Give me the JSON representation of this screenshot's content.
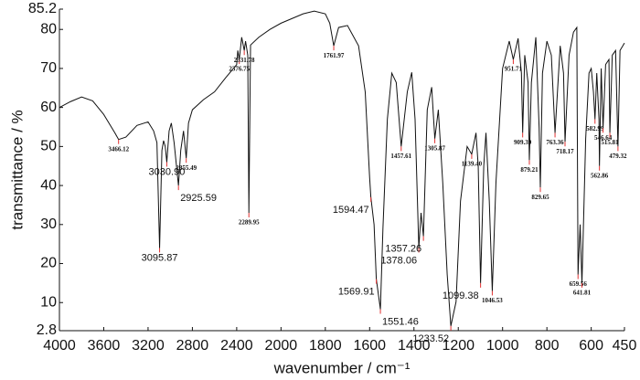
{
  "chart_data": {
    "type": "line",
    "xlabel": "wavenumber / cm⁻¹",
    "ylabel": "transmittance / %",
    "xlim": [
      4000,
      450
    ],
    "xticks": [
      4000,
      3600,
      3200,
      2800,
      2400,
      2000,
      1800,
      1600,
      1400,
      1200,
      1000,
      800,
      600,
      450
    ],
    "x_scale_break": 2000,
    "x_scale_ratio": 2,
    "ylim": [
      2.8,
      85.2
    ],
    "yticks": [
      2.8,
      10,
      20,
      30,
      40,
      50,
      60,
      70,
      80,
      85.2
    ],
    "color": "#111111",
    "marker_color": "#e03030",
    "x": [
      4000,
      3900,
      3800,
      3700,
      3600,
      3500,
      3466.12,
      3400,
      3300,
      3200,
      3150,
      3120,
      3095.87,
      3075,
      3060,
      3045,
      3030.9,
      3010,
      2990,
      2965,
      2925.59,
      2905,
      2880,
      2855.49,
      2835,
      2800,
      2700,
      2600,
      2500,
      2400,
      2390,
      2376.75,
      2355,
      2331.78,
      2320,
      2300,
      2289.95,
      2275,
      2200,
      2100,
      2000,
      1900,
      1850,
      1800,
      1780,
      1761.97,
      1740,
      1700,
      1650,
      1620,
      1600,
      1594.47,
      1580,
      1569.91,
      1551.46,
      1540,
      1520,
      1500,
      1480,
      1457.61,
      1430,
      1410,
      1395,
      1378.06,
      1368,
      1357.26,
      1340,
      1320,
      1305.87,
      1290,
      1270,
      1250,
      1233.52,
      1210,
      1190,
      1160,
      1139.4,
      1120,
      1110,
      1099.38,
      1085,
      1075,
      1060,
      1046.53,
      1030,
      1000,
      970,
      951.71,
      930,
      915,
      909.39,
      900,
      885,
      879.21,
      870,
      850,
      835,
      829.65,
      820,
      800,
      780,
      763.36,
      740,
      725,
      718.17,
      700,
      680,
      665,
      659.56,
      650,
      641.81,
      625,
      610,
      600,
      590,
      582.99,
      575,
      565,
      562.86,
      555,
      546.64,
      535,
      520,
      515.81,
      505,
      490,
      479.32,
      470,
      450
    ],
    "values": [
      60,
      61.5,
      62.7,
      61.7,
      58.2,
      53.5,
      51.8,
      52.4,
      55.4,
      56.3,
      54,
      51,
      24,
      49,
      51.5,
      50,
      46,
      54,
      56,
      51,
      40,
      49,
      54,
      47,
      56,
      59.4,
      62,
      64,
      67.6,
      71,
      74.6,
      72.3,
      78,
      74.6,
      77,
      73.4,
      33,
      76,
      78,
      80,
      81.6,
      84,
      84.7,
      84,
      81.6,
      75.8,
      80.5,
      81,
      75.8,
      64,
      42,
      37,
      30,
      16,
      8.3,
      29,
      57,
      68.8,
      66.4,
      50,
      64,
      69,
      57,
      24,
      33,
      27,
      59.4,
      65.2,
      52,
      59.4,
      40.7,
      17.2,
      4,
      10.2,
      36,
      50,
      48,
      53.5,
      45,
      15,
      45,
      53.5,
      36,
      13,
      40.7,
      70,
      77,
      72.3,
      77.7,
      68.8,
      53.5,
      73.4,
      66.4,
      46.5,
      66.4,
      78,
      54.7,
      39.5,
      68.8,
      77,
      73.4,
      53.5,
      75.8,
      68.8,
      51.2,
      73.4,
      79.3,
      80.5,
      17.2,
      30,
      15,
      52,
      68.8,
      70,
      64,
      57,
      68.8,
      57,
      45,
      70,
      54.7,
      71,
      72.3,
      53.5,
      73.4,
      74.6,
      50,
      74.6,
      76.5
    ],
    "annotations": [
      {
        "label": "3466.12",
        "x": 3466.12,
        "y": 51.8,
        "style": "small",
        "anchor": "below"
      },
      {
        "label": "3095.87",
        "x": 3095.87,
        "y": 24,
        "style": "large",
        "anchor": "below"
      },
      {
        "label": "3030.90",
        "x": 3030.9,
        "y": 46,
        "style": "large",
        "anchor": "below"
      },
      {
        "label": "2925.59",
        "x": 2925.59,
        "y": 40,
        "style": "large",
        "anchor": "right"
      },
      {
        "label": "2855.49",
        "x": 2855.49,
        "y": 47,
        "style": "small",
        "anchor": "below"
      },
      {
        "label": "2376.75",
        "x": 2376.75,
        "y": 72.3,
        "style": "small",
        "anchor": "below"
      },
      {
        "label": "2331.78",
        "x": 2331.78,
        "y": 74.6,
        "style": "small",
        "anchor": "below"
      },
      {
        "label": "2289.95",
        "x": 2289.95,
        "y": 33,
        "style": "small",
        "anchor": "below"
      },
      {
        "label": "1761.97",
        "x": 1761.97,
        "y": 75.8,
        "style": "small",
        "anchor": "below"
      },
      {
        "label": "1594.47",
        "x": 1594.47,
        "y": 37,
        "style": "large",
        "anchor": "left"
      },
      {
        "label": "1569.91",
        "x": 1569.91,
        "y": 16,
        "style": "large",
        "anchor": "left"
      },
      {
        "label": "1551.46",
        "x": 1551.46,
        "y": 8.3,
        "style": "large",
        "anchor": "right"
      },
      {
        "label": "1457.61",
        "x": 1457.61,
        "y": 50,
        "style": "small",
        "anchor": "below"
      },
      {
        "label": "1378.06",
        "x": 1378.06,
        "y": 24,
        "style": "large",
        "anchor": "left"
      },
      {
        "label": "1357.26",
        "x": 1357.26,
        "y": 27,
        "style": "large",
        "anchor": "left"
      },
      {
        "label": "1305.87",
        "x": 1305.87,
        "y": 52,
        "style": "small",
        "anchor": "below"
      },
      {
        "label": "1233.52",
        "x": 1233.52,
        "y": 4,
        "style": "large",
        "anchor": "left"
      },
      {
        "label": "1139.40",
        "x": 1139.4,
        "y": 48,
        "style": "small",
        "anchor": "below"
      },
      {
        "label": "1099.38",
        "x": 1099.38,
        "y": 15,
        "style": "large",
        "anchor": "left"
      },
      {
        "label": "1046.53",
        "x": 1046.53,
        "y": 13,
        "style": "small",
        "anchor": "below"
      },
      {
        "label": "951.71",
        "x": 951.71,
        "y": 72.3,
        "style": "small",
        "anchor": "below"
      },
      {
        "label": "909.39",
        "x": 909.39,
        "y": 53.5,
        "style": "small",
        "anchor": "below"
      },
      {
        "label": "879.21",
        "x": 879.21,
        "y": 46.5,
        "style": "small",
        "anchor": "below"
      },
      {
        "label": "829.65",
        "x": 829.65,
        "y": 39.5,
        "style": "small",
        "anchor": "below"
      },
      {
        "label": "763.36",
        "x": 763.36,
        "y": 53.5,
        "style": "small",
        "anchor": "below"
      },
      {
        "label": "718.17",
        "x": 718.17,
        "y": 51.2,
        "style": "small",
        "anchor": "below"
      },
      {
        "label": "659.56",
        "x": 659.56,
        "y": 17.2,
        "style": "small",
        "anchor": "below"
      },
      {
        "label": "641.81",
        "x": 641.81,
        "y": 15,
        "style": "small",
        "anchor": "below"
      },
      {
        "label": "582.99",
        "x": 582.99,
        "y": 57,
        "style": "small",
        "anchor": "below"
      },
      {
        "label": "562.86",
        "x": 562.86,
        "y": 45,
        "style": "small",
        "anchor": "below"
      },
      {
        "label": "546.64",
        "x": 546.64,
        "y": 54.7,
        "style": "small",
        "anchor": "below"
      },
      {
        "label": "515.81",
        "x": 515.81,
        "y": 53.5,
        "style": "small",
        "anchor": "below"
      },
      {
        "label": "479.32",
        "x": 479.32,
        "y": 50,
        "style": "small",
        "anchor": "below"
      }
    ]
  }
}
